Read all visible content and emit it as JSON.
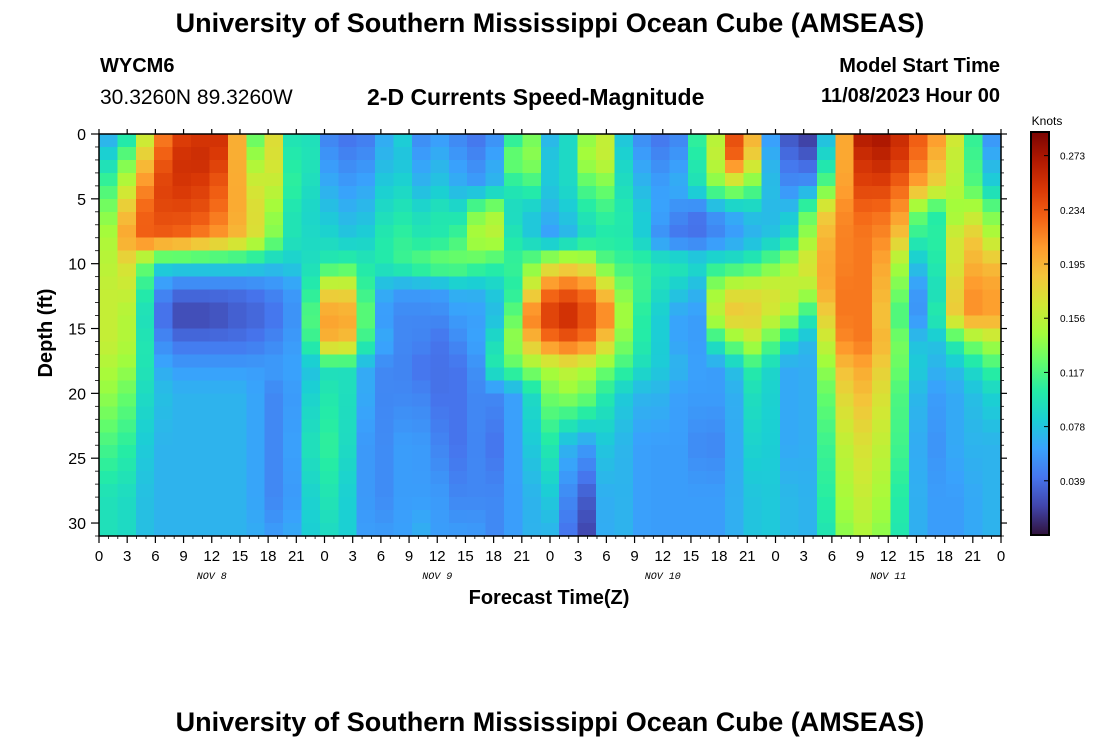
{
  "header": {
    "title": "University of Southern Mississippi Ocean Cube (AMSEAS)",
    "station": "WYCM6",
    "coords": "30.3260N  89.3260W",
    "subtitle": "2-D Currents Speed-Magnitude",
    "model_start_label": "Model Start Time",
    "model_start_value": "11/08/2023 Hour 00"
  },
  "footer": {
    "title": "University of Southern Mississippi Ocean Cube (AMSEAS)"
  },
  "chart_data": {
    "type": "heatmap",
    "xlabel": "Forecast Time(Z)",
    "ylabel": "Depth (ft)",
    "x_tick_labels": [
      "0",
      "3",
      "6",
      "9",
      "12",
      "15",
      "18",
      "21",
      "0",
      "3",
      "6",
      "9",
      "12",
      "15",
      "18",
      "21",
      "0",
      "3",
      "6",
      "9",
      "12",
      "15",
      "18",
      "21",
      "0",
      "3",
      "6",
      "9",
      "12",
      "15",
      "18",
      "21",
      "0"
    ],
    "day_labels": [
      "NOV 8",
      "NOV 9",
      "NOV 10",
      "NOV 11"
    ],
    "xlim_hours": [
      0,
      96
    ],
    "y_ticks": [
      0,
      5,
      10,
      15,
      20,
      25,
      30
    ],
    "ylim": [
      0,
      31
    ],
    "y_inverted": true,
    "colorbar": {
      "title": "Knots",
      "ticks": [
        "0.273",
        "0.234",
        "0.195",
        "0.156",
        "0.117",
        "0.078",
        "0.039"
      ],
      "tick_values": [
        0.273,
        0.234,
        0.195,
        0.156,
        0.117,
        0.078,
        0.039
      ],
      "range": [
        0,
        0.29
      ],
      "colors": [
        "#30123b",
        "#4145ab",
        "#4675ed",
        "#39a2fc",
        "#1bcfd4",
        "#24eca6",
        "#61fc6c",
        "#a4fc3b",
        "#d1e834",
        "#f3c63a",
        "#fe9b2d",
        "#f36315",
        "#d93806",
        "#b11901",
        "#7a0402"
      ]
    },
    "depth_levels_ft": [
      0,
      2,
      4,
      6,
      8,
      10,
      12,
      14,
      16,
      18,
      20,
      24,
      28,
      31
    ],
    "time_hours": [
      0,
      2,
      4,
      6,
      8,
      10,
      12,
      14,
      16,
      18,
      20,
      22,
      24,
      26,
      28,
      30,
      32,
      34,
      36,
      38,
      40,
      42,
      44,
      46,
      48,
      50,
      52,
      54,
      56,
      58,
      60,
      62,
      64,
      66,
      68,
      70,
      72,
      74,
      76,
      78,
      80,
      82,
      84,
      86,
      88,
      90,
      92,
      94,
      96
    ],
    "values": [
      [
        0.06,
        0.07,
        0.12,
        0.2,
        0.24,
        0.25,
        0.25,
        0.26,
        0.08,
        0.21,
        0.09,
        0.11,
        0.05,
        0.04,
        0.04,
        0.06,
        0.09,
        0.05,
        0.06,
        0.05,
        0.04,
        0.05,
        0.1,
        0.13,
        0.07,
        0.09,
        0.14,
        0.16,
        0.07,
        0.05,
        0.04,
        0.05,
        0.12,
        0.16,
        0.26,
        0.18,
        0.02,
        0.03,
        0.01,
        0.1,
        0.25,
        0.28,
        0.27,
        0.25,
        0.22,
        0.2,
        0.14,
        0.08,
        0.03
      ],
      [
        0.08,
        0.1,
        0.16,
        0.22,
        0.25,
        0.26,
        0.25,
        0.24,
        0.12,
        0.2,
        0.1,
        0.11,
        0.06,
        0.05,
        0.05,
        0.07,
        0.08,
        0.06,
        0.07,
        0.06,
        0.05,
        0.06,
        0.13,
        0.14,
        0.08,
        0.09,
        0.15,
        0.16,
        0.08,
        0.06,
        0.05,
        0.06,
        0.11,
        0.17,
        0.24,
        0.16,
        0.04,
        0.04,
        0.03,
        0.12,
        0.24,
        0.26,
        0.26,
        0.24,
        0.21,
        0.18,
        0.14,
        0.09,
        0.05
      ],
      [
        0.1,
        0.13,
        0.19,
        0.24,
        0.25,
        0.25,
        0.24,
        0.22,
        0.16,
        0.18,
        0.11,
        0.1,
        0.07,
        0.06,
        0.06,
        0.08,
        0.09,
        0.07,
        0.08,
        0.07,
        0.06,
        0.07,
        0.1,
        0.11,
        0.08,
        0.09,
        0.12,
        0.13,
        0.09,
        0.07,
        0.06,
        0.07,
        0.1,
        0.14,
        0.15,
        0.12,
        0.06,
        0.05,
        0.06,
        0.15,
        0.23,
        0.25,
        0.24,
        0.22,
        0.19,
        0.17,
        0.14,
        0.1,
        0.07
      ],
      [
        0.11,
        0.16,
        0.22,
        0.24,
        0.24,
        0.24,
        0.23,
        0.21,
        0.18,
        0.16,
        0.1,
        0.09,
        0.08,
        0.07,
        0.07,
        0.09,
        0.1,
        0.09,
        0.1,
        0.09,
        0.13,
        0.15,
        0.09,
        0.08,
        0.07,
        0.08,
        0.1,
        0.11,
        0.1,
        0.08,
        0.06,
        0.05,
        0.04,
        0.06,
        0.07,
        0.08,
        0.07,
        0.08,
        0.14,
        0.2,
        0.22,
        0.23,
        0.22,
        0.2,
        0.08,
        0.12,
        0.16,
        0.15,
        0.11
      ],
      [
        0.12,
        0.18,
        0.23,
        0.23,
        0.23,
        0.22,
        0.21,
        0.2,
        0.18,
        0.15,
        0.1,
        0.09,
        0.09,
        0.08,
        0.08,
        0.1,
        0.11,
        0.1,
        0.1,
        0.11,
        0.15,
        0.16,
        0.1,
        0.08,
        0.06,
        0.07,
        0.09,
        0.1,
        0.1,
        0.08,
        0.05,
        0.04,
        0.04,
        0.05,
        0.06,
        0.07,
        0.08,
        0.1,
        0.16,
        0.21,
        0.22,
        0.22,
        0.21,
        0.17,
        0.06,
        0.14,
        0.19,
        0.18,
        0.13
      ],
      [
        0.13,
        0.18,
        0.16,
        0.09,
        0.09,
        0.09,
        0.09,
        0.09,
        0.09,
        0.08,
        0.08,
        0.09,
        0.1,
        0.11,
        0.1,
        0.1,
        0.11,
        0.12,
        0.13,
        0.13,
        0.12,
        0.11,
        0.11,
        0.13,
        0.16,
        0.17,
        0.16,
        0.12,
        0.11,
        0.11,
        0.1,
        0.1,
        0.09,
        0.1,
        0.1,
        0.11,
        0.13,
        0.15,
        0.18,
        0.21,
        0.22,
        0.22,
        0.19,
        0.12,
        0.05,
        0.14,
        0.19,
        0.2,
        0.18
      ],
      [
        0.14,
        0.18,
        0.14,
        0.06,
        0.04,
        0.04,
        0.04,
        0.04,
        0.04,
        0.05,
        0.05,
        0.08,
        0.17,
        0.19,
        0.12,
        0.07,
        0.06,
        0.06,
        0.06,
        0.07,
        0.07,
        0.08,
        0.1,
        0.17,
        0.22,
        0.23,
        0.22,
        0.18,
        0.13,
        0.11,
        0.09,
        0.08,
        0.07,
        0.16,
        0.17,
        0.17,
        0.17,
        0.16,
        0.15,
        0.22,
        0.22,
        0.22,
        0.18,
        0.1,
        0.03,
        0.14,
        0.21,
        0.21,
        0.2
      ],
      [
        0.15,
        0.17,
        0.13,
        0.05,
        0.02,
        0.02,
        0.02,
        0.03,
        0.03,
        0.04,
        0.04,
        0.09,
        0.2,
        0.22,
        0.14,
        0.06,
        0.05,
        0.05,
        0.05,
        0.06,
        0.06,
        0.07,
        0.12,
        0.22,
        0.25,
        0.26,
        0.24,
        0.22,
        0.14,
        0.1,
        0.08,
        0.06,
        0.06,
        0.18,
        0.19,
        0.18,
        0.16,
        0.14,
        0.09,
        0.22,
        0.22,
        0.22,
        0.17,
        0.08,
        0.04,
        0.15,
        0.21,
        0.21,
        0.2
      ],
      [
        0.15,
        0.17,
        0.13,
        0.06,
        0.04,
        0.04,
        0.04,
        0.04,
        0.04,
        0.05,
        0.05,
        0.08,
        0.19,
        0.21,
        0.12,
        0.07,
        0.05,
        0.05,
        0.04,
        0.05,
        0.06,
        0.09,
        0.14,
        0.19,
        0.22,
        0.23,
        0.22,
        0.18,
        0.13,
        0.1,
        0.08,
        0.06,
        0.06,
        0.11,
        0.14,
        0.16,
        0.11,
        0.08,
        0.07,
        0.2,
        0.22,
        0.22,
        0.18,
        0.1,
        0.06,
        0.09,
        0.12,
        0.15,
        0.15
      ],
      [
        0.14,
        0.16,
        0.12,
        0.07,
        0.06,
        0.06,
        0.06,
        0.06,
        0.06,
        0.06,
        0.06,
        0.07,
        0.09,
        0.1,
        0.07,
        0.05,
        0.05,
        0.04,
        0.04,
        0.04,
        0.05,
        0.1,
        0.12,
        0.14,
        0.15,
        0.16,
        0.15,
        0.13,
        0.11,
        0.09,
        0.08,
        0.07,
        0.06,
        0.06,
        0.08,
        0.11,
        0.08,
        0.06,
        0.07,
        0.17,
        0.2,
        0.2,
        0.17,
        0.1,
        0.07,
        0.07,
        0.08,
        0.1,
        0.12
      ],
      [
        0.13,
        0.15,
        0.1,
        0.08,
        0.07,
        0.07,
        0.07,
        0.07,
        0.07,
        0.05,
        0.05,
        0.08,
        0.1,
        0.1,
        0.07,
        0.05,
        0.05,
        0.05,
        0.04,
        0.04,
        0.05,
        0.05,
        0.06,
        0.09,
        0.13,
        0.14,
        0.13,
        0.1,
        0.08,
        0.07,
        0.07,
        0.06,
        0.06,
        0.06,
        0.07,
        0.1,
        0.08,
        0.06,
        0.07,
        0.15,
        0.19,
        0.19,
        0.16,
        0.09,
        0.06,
        0.06,
        0.07,
        0.08,
        0.09
      ],
      [
        0.11,
        0.12,
        0.09,
        0.07,
        0.07,
        0.07,
        0.07,
        0.07,
        0.07,
        0.05,
        0.05,
        0.09,
        0.11,
        0.1,
        0.06,
        0.05,
        0.06,
        0.06,
        0.05,
        0.04,
        0.05,
        0.04,
        0.06,
        0.08,
        0.1,
        0.07,
        0.06,
        0.08,
        0.07,
        0.06,
        0.06,
        0.06,
        0.05,
        0.05,
        0.07,
        0.09,
        0.08,
        0.06,
        0.07,
        0.13,
        0.17,
        0.17,
        0.15,
        0.09,
        0.05,
        0.06,
        0.07,
        0.07,
        0.07
      ],
      [
        0.09,
        0.1,
        0.08,
        0.07,
        0.07,
        0.07,
        0.07,
        0.07,
        0.07,
        0.05,
        0.05,
        0.08,
        0.1,
        0.09,
        0.06,
        0.05,
        0.06,
        0.06,
        0.06,
        0.05,
        0.05,
        0.05,
        0.06,
        0.07,
        0.08,
        0.05,
        0.03,
        0.07,
        0.07,
        0.06,
        0.06,
        0.06,
        0.06,
        0.06,
        0.07,
        0.08,
        0.08,
        0.07,
        0.07,
        0.12,
        0.16,
        0.16,
        0.14,
        0.08,
        0.06,
        0.06,
        0.06,
        0.07,
        0.07
      ],
      [
        0.09,
        0.1,
        0.08,
        0.07,
        0.07,
        0.07,
        0.07,
        0.07,
        0.07,
        0.06,
        0.06,
        0.08,
        0.09,
        0.09,
        0.06,
        0.06,
        0.06,
        0.07,
        0.06,
        0.06,
        0.06,
        0.05,
        0.06,
        0.07,
        0.07,
        0.04,
        0.02,
        0.07,
        0.07,
        0.06,
        0.06,
        0.06,
        0.06,
        0.06,
        0.07,
        0.08,
        0.08,
        0.07,
        0.07,
        0.11,
        0.15,
        0.15,
        0.13,
        0.08,
        0.06,
        0.06,
        0.06,
        0.07,
        0.07
      ]
    ]
  }
}
